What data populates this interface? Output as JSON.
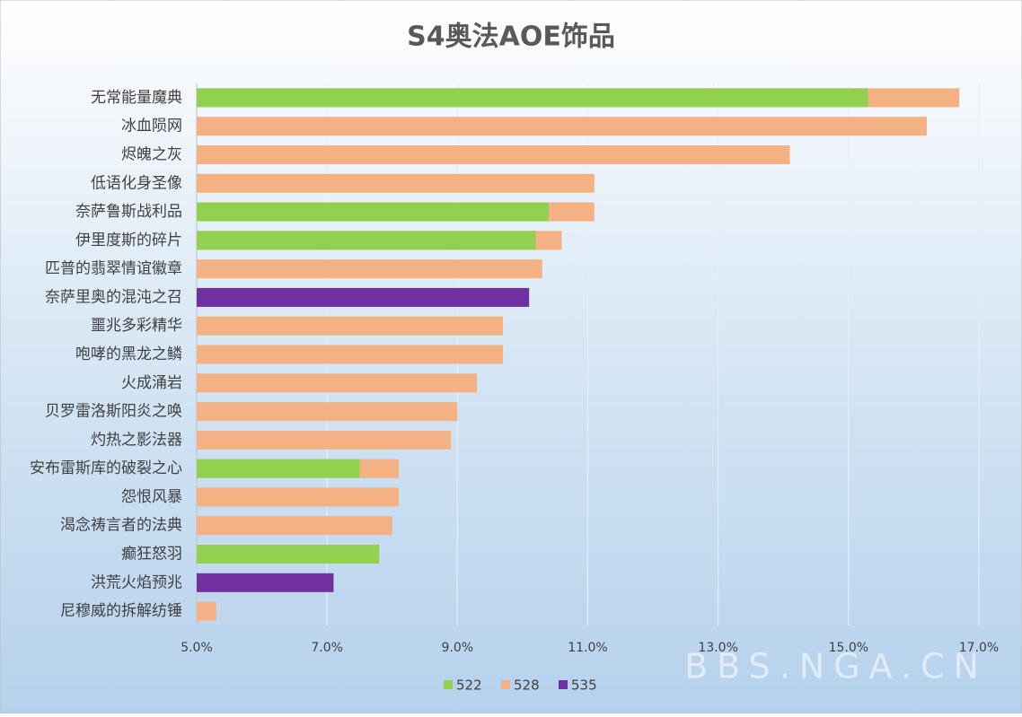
{
  "chart_data": {
    "type": "bar",
    "orientation": "horizontal",
    "title": "S4奥法AOE饰品",
    "categories": [
      "无常能量魔典",
      "冰血陨网",
      "烬魄之灰",
      "低语化身圣像",
      "奈萨鲁斯战利品",
      "伊里度斯的碎片",
      "匹普的翡翠情谊徽章",
      "奈萨里奥的混沌之召",
      "噩兆多彩精华",
      "咆哮的黑龙之鳞",
      "火成涌岩",
      "贝罗雷洛斯阳炎之唤",
      "灼热之影法器",
      "安布雷斯库的破裂之心",
      "怨恨风暴",
      "渴念祷言者的法典",
      "癫狂怒羽",
      "洪荒火焰预兆",
      "尼穆威的拆解纺锤"
    ],
    "series": [
      {
        "name": "522",
        "color": "#92d050",
        "values": [
          15.3,
          null,
          null,
          null,
          10.4,
          10.2,
          null,
          null,
          null,
          null,
          null,
          null,
          null,
          7.5,
          null,
          null,
          7.8,
          null,
          null
        ]
      },
      {
        "name": "528",
        "color": "#f4b183",
        "values": [
          16.7,
          16.2,
          14.1,
          11.1,
          11.1,
          10.6,
          10.3,
          null,
          9.7,
          9.7,
          9.3,
          9.0,
          8.9,
          8.1,
          8.1,
          8.0,
          null,
          null,
          5.3
        ]
      },
      {
        "name": "535",
        "color": "#7030a0",
        "values": [
          null,
          null,
          null,
          null,
          null,
          null,
          null,
          10.1,
          null,
          null,
          null,
          null,
          null,
          null,
          null,
          null,
          null,
          7.1,
          null
        ]
      }
    ],
    "xlim": [
      5,
      17
    ],
    "xticks": [
      {
        "value": 5,
        "label": "5.0%"
      },
      {
        "value": 7,
        "label": "7.0%"
      },
      {
        "value": 9,
        "label": "9.0%"
      },
      {
        "value": 11,
        "label": "11.0%"
      },
      {
        "value": 13,
        "label": "13.0%"
      },
      {
        "value": 15,
        "label": "15.0%"
      },
      {
        "value": 17,
        "label": "17.0%"
      }
    ],
    "grid": true,
    "legend": "bottom",
    "watermark": "BBS.NGA.CN"
  }
}
